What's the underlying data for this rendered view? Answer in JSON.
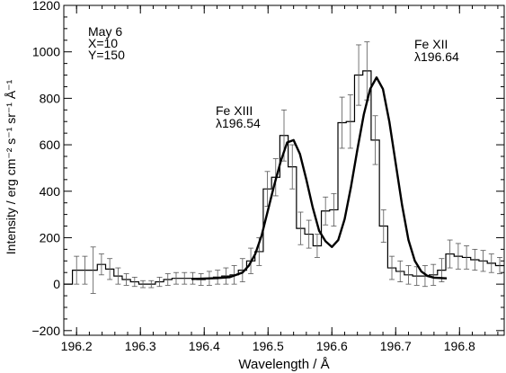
{
  "chart_data": {
    "type": "line",
    "title": "",
    "xlabel": "Wavelength / Å",
    "ylabel": "Intensity / erg cm⁻² s⁻¹ sr⁻¹ Å⁻¹",
    "xlim": [
      196.18,
      196.87
    ],
    "ylim": [
      -220,
      1200
    ],
    "x_ticks": [
      196.2,
      196.3,
      196.4,
      196.5,
      196.6,
      196.7,
      196.8
    ],
    "x_tick_labels": [
      "196.2",
      "196.3",
      "196.4",
      "196.5",
      "196.6",
      "196.7",
      "196.8"
    ],
    "y_ticks": [
      -200,
      0,
      200,
      400,
      600,
      800,
      1000,
      1200
    ],
    "y_tick_labels": [
      "−200",
      "0",
      "200",
      "400",
      "600",
      "800",
      "1000",
      "1200"
    ],
    "grid": false,
    "info_text": [
      "May 6",
      "X=10",
      "Y=150"
    ],
    "annotations": [
      {
        "name": "fe-xiii",
        "lines": [
          "Fe XIII",
          "λ196.54"
        ],
        "x": 196.49,
        "y": 700
      },
      {
        "name": "fe-xii",
        "lines": [
          "Fe XII",
          "λ196.64"
        ],
        "x": 196.745,
        "y": 1010
      }
    ],
    "histogram": {
      "name": "observed-spectrum",
      "x": [
        196.187,
        196.2,
        196.213,
        196.226,
        196.239,
        196.252,
        196.265,
        196.278,
        196.291,
        196.304,
        196.317,
        196.33,
        196.343,
        196.356,
        196.369,
        196.382,
        196.395,
        196.408,
        196.421,
        196.434,
        196.447,
        196.46,
        196.473,
        196.486,
        196.499,
        196.512,
        196.525,
        196.538,
        196.551,
        196.564,
        196.577,
        196.59,
        196.603,
        196.616,
        196.629,
        196.642,
        196.655,
        196.668,
        196.681,
        196.694,
        196.707,
        196.72,
        196.733,
        196.746,
        196.759,
        196.772,
        196.785,
        196.798,
        196.811,
        196.824,
        196.837,
        196.85,
        196.863
      ],
      "y": [
        0,
        60,
        60,
        60,
        85,
        65,
        35,
        20,
        10,
        0,
        0,
        10,
        20,
        25,
        25,
        25,
        20,
        25,
        30,
        35,
        40,
        60,
        100,
        140,
        410,
        460,
        640,
        505,
        240,
        215,
        165,
        315,
        320,
        695,
        700,
        900,
        918,
        620,
        250,
        70,
        55,
        40,
        35,
        35,
        40,
        60,
        130,
        120,
        115,
        105,
        100,
        90,
        80
      ],
      "errors": [
        0,
        60,
        60,
        100,
        45,
        45,
        35,
        25,
        20,
        15,
        15,
        20,
        25,
        25,
        25,
        25,
        25,
        30,
        30,
        35,
        40,
        50,
        55,
        60,
        75,
        80,
        110,
        95,
        70,
        60,
        50,
        60,
        70,
        110,
        115,
        130,
        125,
        105,
        70,
        50,
        45,
        40,
        40,
        45,
        45,
        50,
        60,
        55,
        50,
        45,
        45,
        40,
        35
      ]
    },
    "fit": {
      "name": "gaussian-fit",
      "x": [
        196.38,
        196.4,
        196.42,
        196.44,
        196.46,
        196.47,
        196.48,
        196.49,
        196.5,
        196.51,
        196.52,
        196.53,
        196.54,
        196.55,
        196.56,
        196.57,
        196.58,
        196.59,
        196.6,
        196.61,
        196.62,
        196.63,
        196.64,
        196.65,
        196.66,
        196.67,
        196.68,
        196.69,
        196.7,
        196.71,
        196.72,
        196.73,
        196.74,
        196.75,
        196.76,
        196.78
      ],
      "y": [
        22,
        24,
        26,
        30,
        50,
        80,
        130,
        210,
        320,
        430,
        530,
        610,
        620,
        560,
        450,
        330,
        230,
        185,
        160,
        190,
        280,
        420,
        580,
        730,
        840,
        890,
        840,
        700,
        520,
        340,
        190,
        100,
        55,
        35,
        28,
        25
      ]
    }
  }
}
